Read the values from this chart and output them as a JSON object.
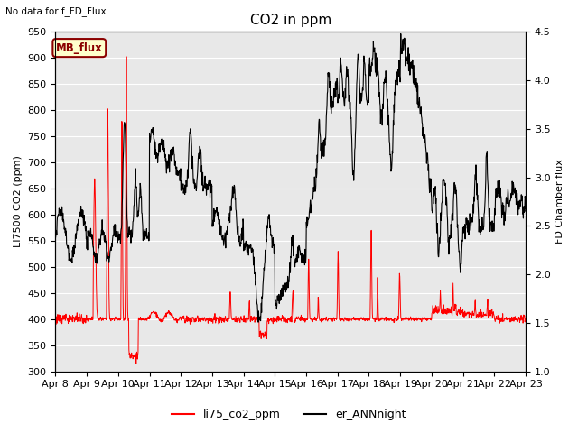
{
  "title": "CO2 in ppm",
  "no_data_text": "No data for f_FD_Flux",
  "mb_flux_label": "MB_flux",
  "xlabel_ticks": [
    "Apr 8",
    "Apr 9",
    "Apr 10",
    "Apr 11",
    "Apr 12",
    "Apr 13",
    "Apr 14",
    "Apr 15",
    "Apr 16",
    "Apr 17",
    "Apr 18",
    "Apr 19",
    "Apr 20",
    "Apr 21",
    "Apr 22",
    "Apr 23"
  ],
  "ylabel_left": "LI7500 CO2 (ppm)",
  "ylabel_right": "FD Chamber flux",
  "ylim_left": [
    300,
    950
  ],
  "ylim_right": [
    1.0,
    4.5
  ],
  "yticks_left": [
    300,
    350,
    400,
    450,
    500,
    550,
    600,
    650,
    700,
    750,
    800,
    850,
    900,
    950
  ],
  "yticks_right": [
    1.0,
    1.5,
    2.0,
    2.5,
    3.0,
    3.5,
    4.0,
    4.5
  ],
  "red_color": "#FF0000",
  "black_color": "#000000",
  "bg_color": "#E8E8E8",
  "legend_red": "li75_co2_ppm",
  "legend_black": "er_ANNnight",
  "title_fontsize": 11,
  "label_fontsize": 8,
  "tick_fontsize": 8
}
